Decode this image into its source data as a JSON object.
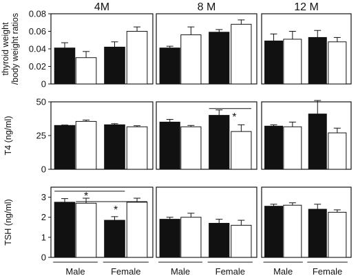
{
  "chart_data": {
    "type": "bar",
    "layout": "3x3 grid of bar charts; rows share y-axis, columns are ages",
    "columns": [
      "4M",
      "8 M",
      "12 M"
    ],
    "group_labels": [
      "Male",
      "Female"
    ],
    "bar_fills": [
      "#111111",
      "#ffffff"
    ],
    "rows": [
      {
        "ylabel": "thyroid weight /body weight ratios",
        "ylabel_lines": [
          "thyroid weight",
          "/body weight ratios"
        ],
        "ylim": [
          0,
          0.08
        ],
        "yticks": [
          "0",
          "0.02",
          "0.04",
          "0.06",
          "0.08"
        ],
        "ytick_values": [
          0,
          0.02,
          0.04,
          0.06,
          0.08
        ],
        "panels": [
          {
            "values": [
              0.041,
              0.03,
              0.042,
              0.06
            ],
            "errors": [
              0.006,
              0.007,
              0.006,
              0.005
            ]
          },
          {
            "values": [
              0.041,
              0.056,
              0.059,
              0.068
            ],
            "errors": [
              0.002,
              0.009,
              0.003,
              0.005
            ]
          },
          {
            "values": [
              0.049,
              0.051,
              0.053,
              0.048
            ],
            "errors": [
              0.008,
              0.009,
              0.008,
              0.005
            ]
          }
        ]
      },
      {
        "ylabel": "T4 (ng/ml)",
        "ylabel_lines": [
          "T4 (ng/ml)"
        ],
        "ylim": [
          0,
          50
        ],
        "yticks": [
          "0",
          "25",
          "50"
        ],
        "ytick_values": [
          0,
          25,
          50
        ],
        "panels": [
          {
            "values": [
              32.5,
              35.5,
              33,
              31.5
            ],
            "errors": [
              0.3,
              1,
              0.8,
              0.8
            ]
          },
          {
            "values": [
              35,
              31.5,
              40,
              28
            ],
            "errors": [
              2,
              1,
              4,
              5
            ],
            "annotations": [
              {
                "text": "*",
                "type": "bracket",
                "from_bar": 2,
                "to_bar": 3,
                "y": 45
              }
            ]
          },
          {
            "values": [
              32,
              31.5,
              41,
              27
            ],
            "errors": [
              1,
              3.5,
              10,
              3.5
            ]
          }
        ]
      },
      {
        "ylabel": "TSH (ng/ml)",
        "ylabel_lines": [
          "TSH (ng/ml)"
        ],
        "ylim": [
          0,
          3.5
        ],
        "yticks": [
          "0",
          "1",
          "2",
          "3"
        ],
        "ytick_values": [
          0,
          1,
          2,
          3
        ],
        "panels": [
          {
            "values": [
              2.75,
              2.7,
              1.85,
              2.75
            ],
            "errors": [
              0.18,
              0.25,
              0.18,
              0.2
            ],
            "annotations": [
              {
                "text": "*",
                "type": "bracket",
                "from_bar": 0,
                "to_bar": 2,
                "y": 3.3
              },
              {
                "text": "*",
                "type": "bracket",
                "from_bar": 1,
                "to_bar": 3,
                "y": 2.78
              }
            ]
          },
          {
            "values": [
              1.9,
              2.0,
              1.7,
              1.6
            ],
            "errors": [
              0.1,
              0.2,
              0.2,
              0.25
            ]
          },
          {
            "values": [
              2.55,
              2.6,
              2.4,
              2.25
            ],
            "errors": [
              0.1,
              0.12,
              0.25,
              0.12
            ]
          }
        ]
      }
    ]
  }
}
